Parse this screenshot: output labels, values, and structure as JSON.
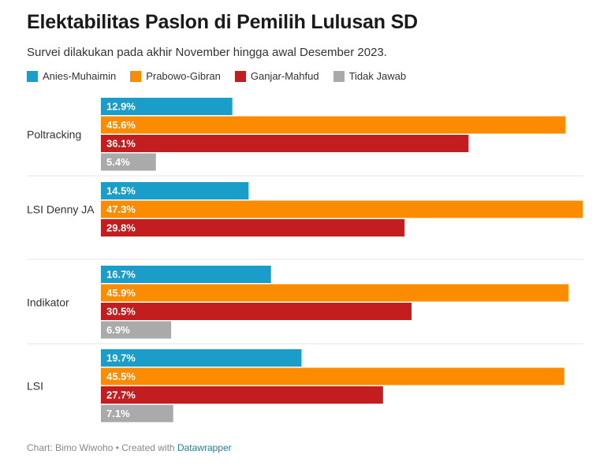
{
  "header": {
    "title": "Elektabilitas Paslon di Pemilih Lulusan SD",
    "subtitle": "Survei dilakukan pada akhir November hingga awal Desember 2023."
  },
  "footer": {
    "credit": "Chart: Bimo Wiwoho • Created with",
    "tool": "Datawrapper"
  },
  "chart_data": {
    "type": "bar",
    "orientation": "horizontal-grouped",
    "value_unit": "%",
    "xlim": [
      0,
      47.3
    ],
    "legend_position": "top",
    "categories": [
      "Poltracking",
      "LSI Denny JA",
      "Indikator",
      "LSI"
    ],
    "series": [
      {
        "name": "Anies-Muhaimin",
        "color": "#1a9dc8",
        "values": [
          12.9,
          14.5,
          16.7,
          19.7
        ],
        "labels": [
          "12.9%",
          "14.5%",
          "16.7%",
          "19.7%"
        ]
      },
      {
        "name": "Prabowo-Gibran",
        "color": "#fb8b00",
        "values": [
          45.6,
          47.3,
          45.9,
          45.5
        ],
        "labels": [
          "45.6%",
          "47.3%",
          "45.9%",
          "45.5%"
        ]
      },
      {
        "name": "Ganjar-Mahfud",
        "color": "#c41d1f",
        "values": [
          36.1,
          29.8,
          30.5,
          27.7
        ],
        "labels": [
          "36.1%",
          "29.8%",
          "30.5%",
          "27.7%"
        ]
      },
      {
        "name": "Tidak Jawab",
        "color": "#aaaaaa",
        "values": [
          5.4,
          null,
          6.9,
          7.1
        ],
        "labels": [
          "5.4%",
          null,
          "6.9%",
          "7.1%"
        ]
      }
    ]
  }
}
